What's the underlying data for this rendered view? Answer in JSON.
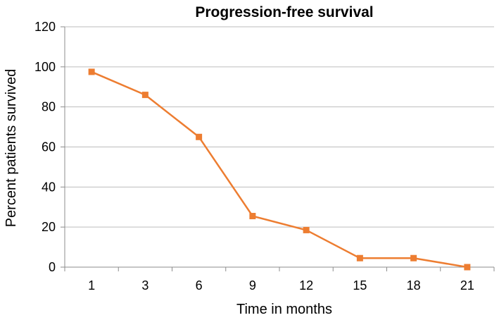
{
  "chart_data": {
    "type": "line",
    "title": "Progression-free survival",
    "xlabel": "Time in months",
    "ylabel": "Percent patients survived",
    "categories": [
      "1",
      "3",
      "6",
      "9",
      "12",
      "15",
      "18",
      "21"
    ],
    "series": [
      {
        "values": [
          97.5,
          86,
          65,
          25.5,
          18.5,
          4.5,
          4.5,
          0
        ]
      }
    ],
    "ylim": [
      0,
      120
    ],
    "yticks": [
      0,
      20,
      40,
      60,
      80,
      100,
      120
    ],
    "grid": true,
    "legend": "none"
  },
  "colors": {
    "series": "#ED7D31",
    "grid": "#BDBDBD",
    "axis": "#8C8C8C"
  }
}
